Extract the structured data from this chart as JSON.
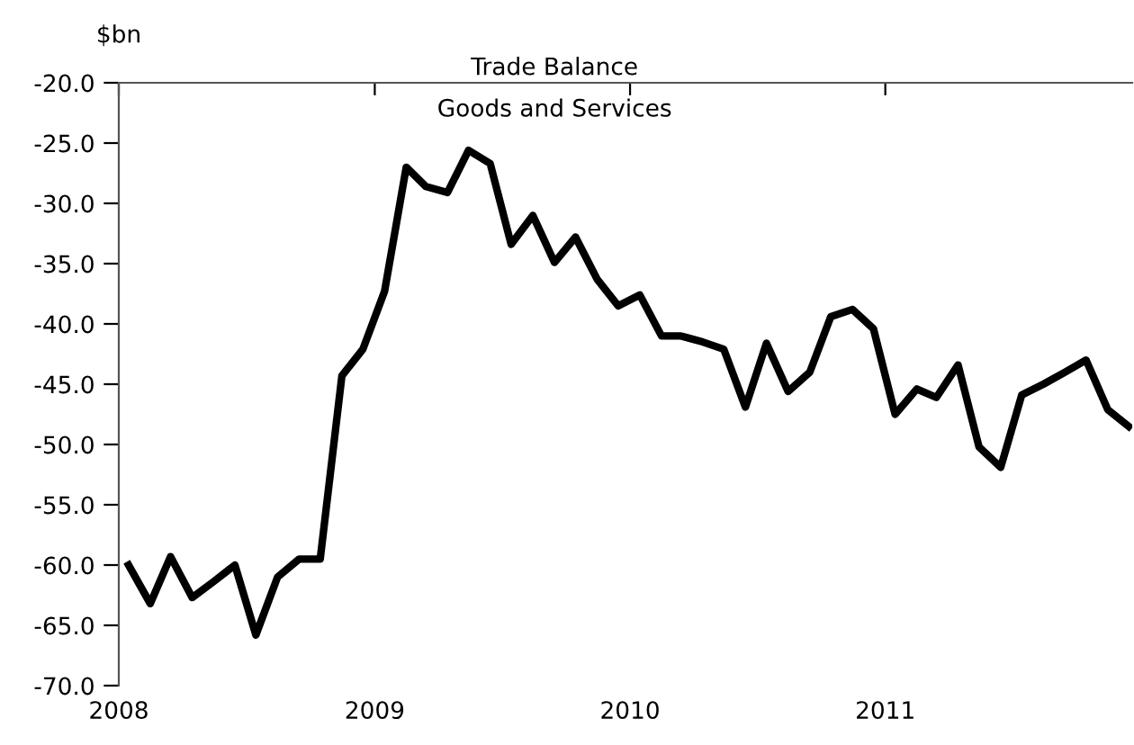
{
  "chart_data": {
    "type": "line",
    "title": "Trade Balance",
    "subtitle": "Goods and Services",
    "ylabel": "$bn",
    "x": [
      "2008-01-15",
      "2008-02-15",
      "2008-03-15",
      "2008-04-15",
      "2008-05-15",
      "2008-06-15",
      "2008-07-15",
      "2008-08-15",
      "2008-09-15",
      "2008-10-15",
      "2008-11-15",
      "2008-12-15",
      "2009-01-15",
      "2009-02-15",
      "2009-03-15",
      "2009-04-15",
      "2009-05-15",
      "2009-06-15",
      "2009-07-15",
      "2009-08-15",
      "2009-09-15",
      "2009-10-15",
      "2009-11-15",
      "2009-12-15",
      "2010-01-15",
      "2010-02-15",
      "2010-03-15",
      "2010-04-15",
      "2010-05-15",
      "2010-06-15",
      "2010-07-15",
      "2010-08-15",
      "2010-09-15",
      "2010-10-15",
      "2010-11-15",
      "2010-12-15",
      "2011-01-15",
      "2011-02-15",
      "2011-03-15",
      "2011-04-15",
      "2011-05-15",
      "2011-06-15",
      "2011-07-15",
      "2011-08-15",
      "2011-09-15",
      "2011-10-15",
      "2011-11-15",
      "2011-12-15"
    ],
    "series": [
      {
        "color": "#000000",
        "values": [
          -60.0,
          -63.2,
          -59.3,
          -62.7,
          -61.4,
          -60.0,
          -65.8,
          -61.0,
          -59.5,
          -59.5,
          -44.3,
          -42.1,
          -37.3,
          -27.0,
          -28.6,
          -29.1,
          -25.6,
          -26.7,
          -33.4,
          -31.0,
          -34.9,
          -32.8,
          -36.3,
          -38.5,
          -37.6,
          -41.0,
          -41.0,
          -41.5,
          -42.1,
          -46.9,
          -41.6,
          -45.6,
          -44.0,
          -39.4,
          -38.8,
          -40.4,
          -47.5,
          -45.4,
          -46.1,
          -43.4,
          -50.2,
          -51.9,
          -45.9,
          -45.0,
          -44.0,
          -43.0,
          -47.1,
          -48.5
        ]
      }
    ],
    "xlim": [
      "2008-01-01",
      "2011-12-20"
    ],
    "xticks": [
      {
        "value": "2008-01-01",
        "label": "2008"
      },
      {
        "value": "2009-01-01",
        "label": "2009"
      },
      {
        "value": "2010-01-01",
        "label": "2010"
      },
      {
        "value": "2011-01-01",
        "label": "2011"
      }
    ],
    "ylim": [
      -70,
      -20
    ],
    "yticks": [
      {
        "value": -70,
        "label": "-70.0"
      },
      {
        "value": -65,
        "label": "-65.0"
      },
      {
        "value": -60,
        "label": "-60.0"
      },
      {
        "value": -55,
        "label": "-55.0"
      },
      {
        "value": -50,
        "label": "-50.0"
      },
      {
        "value": -45,
        "label": "-45.0"
      },
      {
        "value": -40,
        "label": "-40.0"
      },
      {
        "value": -35,
        "label": "-35.0"
      },
      {
        "value": -30,
        "label": "-30.0"
      },
      {
        "value": -25,
        "label": "-25.0"
      },
      {
        "value": -20,
        "label": "-20.0"
      }
    ],
    "grid": false,
    "legend": false,
    "marker": "none",
    "line_style": "solid"
  }
}
